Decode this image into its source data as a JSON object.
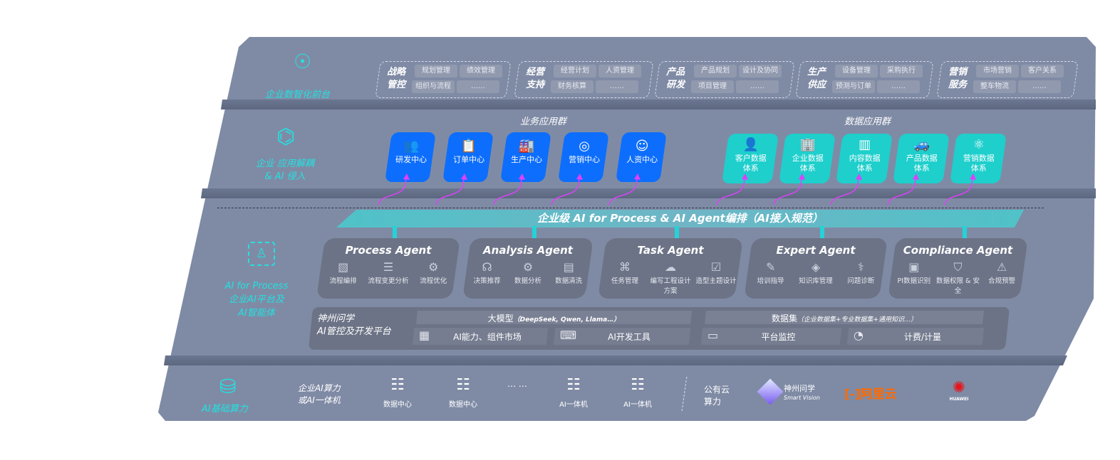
{
  "layers": {
    "front": {
      "label": "企业数智化前台",
      "icon": "brain-head-icon",
      "groups": [
        {
          "title": [
            "战略",
            "管控"
          ],
          "items": [
            "规划管理",
            "绩效管理",
            "组织与流程",
            "……"
          ]
        },
        {
          "title": [
            "经营",
            "支持"
          ],
          "items": [
            "经营计划",
            "人资管理",
            "财务核算",
            "……"
          ]
        },
        {
          "title": [
            "产品",
            "研发"
          ],
          "items": [
            "产品规划",
            "设计及协同",
            "项目管理",
            "……"
          ]
        },
        {
          "title": [
            "生产",
            "供应"
          ],
          "items": [
            "设备管理",
            "采购执行",
            "预测与订单",
            "……"
          ]
        },
        {
          "title": [
            "营销",
            "服务"
          ],
          "items": [
            "市场营销",
            "客户关系",
            "整车物流",
            "……"
          ]
        }
      ]
    },
    "apps": {
      "label": [
        "企业 应用解耦",
        "& AI 侵入"
      ],
      "icon": "molecule-icon",
      "business_title": "业务应用群",
      "business": [
        {
          "label": "研发中心",
          "icon": "team-icon"
        },
        {
          "label": "订单中心",
          "icon": "clipboard-icon"
        },
        {
          "label": "生产中心",
          "icon": "factory-icon"
        },
        {
          "label": "营销中心",
          "icon": "target-icon"
        },
        {
          "label": "人资中心",
          "icon": "person-icon"
        }
      ],
      "data_title": "数据应用群",
      "data": [
        {
          "label": [
            "客户数据",
            "体系"
          ],
          "icon": "user-icon"
        },
        {
          "label": [
            "企业数据",
            "体系"
          ],
          "icon": "building-icon"
        },
        {
          "label": [
            "内容数据",
            "体系"
          ],
          "icon": "books-icon"
        },
        {
          "label": [
            "产品数据",
            "体系"
          ],
          "icon": "car-icon"
        },
        {
          "label": [
            "营销数据",
            "体系"
          ],
          "icon": "atom-icon"
        }
      ]
    },
    "ai": {
      "label": [
        "AI for Process",
        "企业AI平台及",
        "AI智能体"
      ],
      "icon": "scan-user-icon",
      "orchestration": "企业级 AI for Process & AI Agent编排（AI接入规范）",
      "agents": [
        {
          "title": "Process Agent",
          "items": [
            {
              "label": "流程编排",
              "icon": "chart-window-icon"
            },
            {
              "label": "流程变更分析",
              "icon": "list-icon"
            },
            {
              "label": "流程优化",
              "icon": "optimize-icon"
            }
          ]
        },
        {
          "title": "Analysis Agent",
          "items": [
            {
              "label": "决策推荐",
              "icon": "head-icon"
            },
            {
              "label": "数据分析",
              "icon": "gear-atom-icon"
            },
            {
              "label": "数据清洗",
              "icon": "clean-icon"
            }
          ]
        },
        {
          "title": "Task Agent",
          "items": [
            {
              "label": "任务管理",
              "icon": "network-icon"
            },
            {
              "label": "编写工程设计方案",
              "icon": "cloud-icon"
            },
            {
              "label": "造型主题设计",
              "icon": "checklist-icon"
            }
          ]
        },
        {
          "title": "Expert Agent",
          "items": [
            {
              "label": "培训指导",
              "icon": "teacher-icon"
            },
            {
              "label": "知识库管理",
              "icon": "layers-icon"
            },
            {
              "label": "问题诊断",
              "icon": "diagnose-icon"
            }
          ]
        },
        {
          "title": "Compliance Agent",
          "items": [
            {
              "label": "PI数据识别",
              "icon": "id-icon"
            },
            {
              "label": "数据权限 & 安全",
              "icon": "shield-icon"
            },
            {
              "label": "合规预警",
              "icon": "alert-icon"
            }
          ]
        }
      ],
      "platform": {
        "title": [
          "神州问学",
          "AI管控及开发平台"
        ],
        "model": "大模型",
        "model_note": "（DeepSeek, Qwen, Llama…）",
        "dataset": "数据集",
        "dataset_note": "（企业数据集+专业数据集+通用知识…）",
        "tools": [
          {
            "label": "AI能力、组件市场",
            "icon": "market-icon"
          },
          {
            "label": "AI开发工具",
            "icon": "dev-tool-icon"
          },
          {
            "label": "平台监控",
            "icon": "monitor-icon"
          },
          {
            "label": "计费/计量",
            "icon": "gauge-icon"
          }
        ]
      }
    },
    "infra": {
      "label": "AI基础算力",
      "icon": "database-icon",
      "private_label": [
        "企业AI算力",
        "或AI一体机"
      ],
      "servers": [
        "数据中心",
        "数据中心",
        "AI一体机",
        "AI一体机"
      ],
      "ellipsis": "… …",
      "public_label": [
        "公有云",
        "算力"
      ],
      "providers": {
        "smartvision": {
          "name": "神州问学",
          "sub": "Smart Vision"
        },
        "aliyun": {
          "name": "阿里云",
          "color": "#ff6a00"
        },
        "huawei": {
          "name": "HUAWEI",
          "color": "#e5141b"
        }
      }
    }
  },
  "colors": {
    "panel": "#7f8ba5",
    "blue": "#0d6efd",
    "teal": "#1ecfcc",
    "cyan": "#23e0e0",
    "arrow": "#e040fb"
  }
}
